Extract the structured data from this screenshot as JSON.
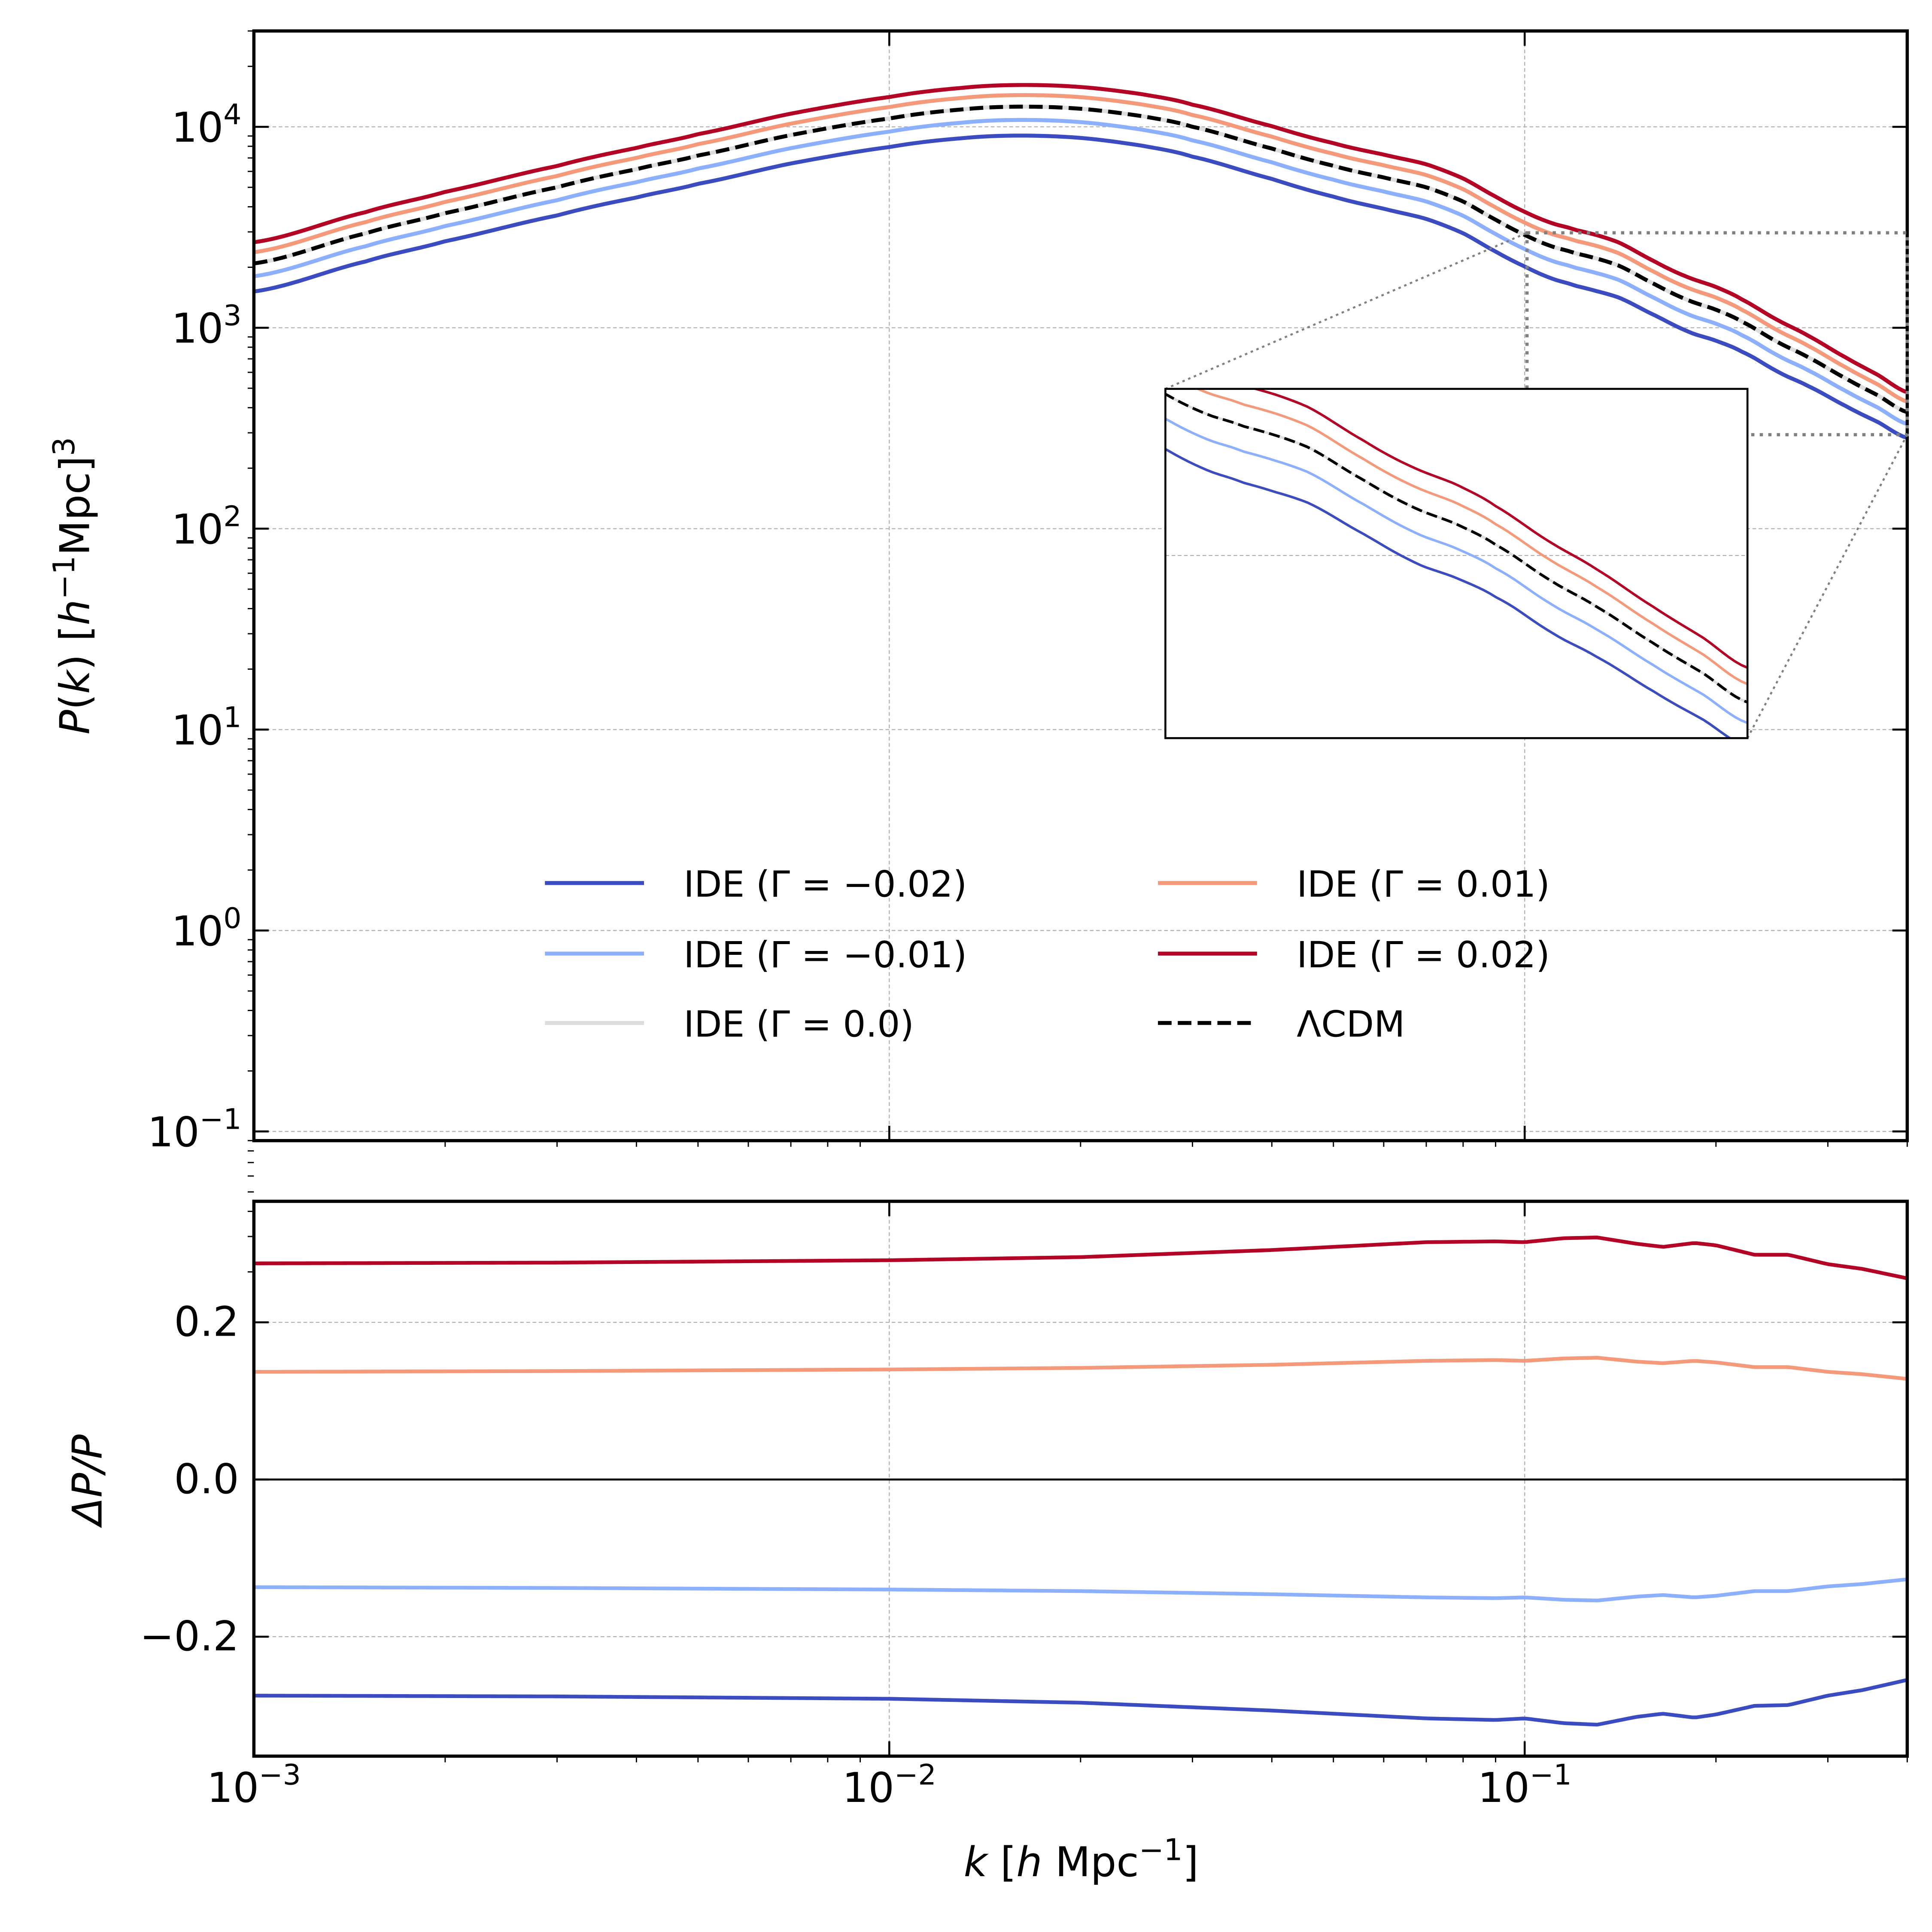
{
  "chart_data": {
    "type": "line",
    "panels": [
      {
        "id": "power-spectrum",
        "ylabel": "P(k) [h^-1 Mpc]^3",
        "xscale": "log",
        "yscale": "log",
        "xlim": [
          0.001,
          0.4
        ],
        "ylim": [
          0.09,
          30000
        ],
        "grid": true,
        "yticks": [
          {
            "value": 10000,
            "base": "10",
            "exp": "4"
          },
          {
            "value": 1000,
            "base": "10",
            "exp": "3"
          },
          {
            "value": 100,
            "base": "10",
            "exp": "2"
          },
          {
            "value": 10,
            "base": "10",
            "exp": "1"
          },
          {
            "value": 1,
            "base": "10",
            "exp": "0"
          },
          {
            "value": 0.1,
            "base": "10",
            "exp": "−1"
          }
        ],
        "legend_position": "lower-center",
        "inset": {
          "xlim": [
            0.1,
            0.4
          ],
          "ylim": [
            300,
            3000
          ],
          "xscale": "log",
          "yscale": "log",
          "location": "center-right",
          "grid": true
        }
      },
      {
        "id": "relative-difference",
        "ylabel": "ΔP/P",
        "xlabel": "k [h Mpc^-1]",
        "xscale": "log",
        "yscale": "linear",
        "xlim": [
          0.001,
          0.4
        ],
        "ylim": [
          -0.352,
          0.354
        ],
        "grid": true,
        "yticks": [
          {
            "value": 0.2,
            "label": "0.2"
          },
          {
            "value": 0.0,
            "label": "0.0"
          },
          {
            "value": -0.2,
            "label": "−0.2"
          }
        ],
        "reference_line": 0.0
      }
    ],
    "xticks": [
      {
        "value": 0.001,
        "base": "10",
        "exp": "−3"
      },
      {
        "value": 0.01,
        "base": "10",
        "exp": "−2"
      },
      {
        "value": 0.1,
        "base": "10",
        "exp": "−1"
      }
    ],
    "lcdm": {
      "k": [
        0.001,
        0.0015,
        0.002,
        0.003,
        0.004,
        0.005,
        0.007,
        0.01,
        0.013,
        0.016,
        0.02,
        0.025,
        0.03,
        0.04,
        0.05,
        0.06,
        0.07,
        0.08,
        0.09,
        0.1,
        0.11,
        0.12,
        0.14,
        0.16,
        0.18,
        0.2,
        0.22,
        0.25,
        0.28,
        0.32,
        0.36,
        0.4
      ],
      "P": [
        2090,
        2950,
        3720,
        5000,
        6150,
        7200,
        9100,
        11000,
        12200,
        12600,
        12300,
        11300,
        10000,
        7800,
        6400,
        5600,
        5000,
        4250,
        3450,
        2900,
        2550,
        2350,
        2050,
        1650,
        1380,
        1230,
        1070,
        850,
        710,
        560,
        460,
        380
      ]
    },
    "ratio_k": [
      0.001,
      0.003,
      0.01,
      0.02,
      0.04,
      0.07,
      0.09,
      0.1,
      0.115,
      0.13,
      0.15,
      0.165,
      0.185,
      0.2,
      0.23,
      0.26,
      0.3,
      0.34,
      0.4
    ],
    "series": [
      {
        "name": "IDE (Γ = −0.02)",
        "gamma": -0.02,
        "color": "#3b4cc0",
        "style": "solid",
        "ratio": [
          -0.275,
          -0.276,
          -0.279,
          -0.284,
          -0.294,
          -0.304,
          -0.306,
          -0.304,
          -0.31,
          -0.312,
          -0.302,
          -0.298,
          -0.303,
          -0.299,
          -0.288,
          -0.287,
          -0.275,
          -0.268,
          -0.255
        ]
      },
      {
        "name": "IDE (Γ = −0.01)",
        "gamma": -0.01,
        "color": "#8db0fe",
        "style": "solid",
        "ratio": [
          -0.137,
          -0.138,
          -0.14,
          -0.142,
          -0.146,
          -0.15,
          -0.151,
          -0.15,
          -0.153,
          -0.154,
          -0.149,
          -0.147,
          -0.15,
          -0.148,
          -0.142,
          -0.142,
          -0.136,
          -0.133,
          -0.127
        ]
      },
      {
        "name": "IDE (Γ = 0.0)",
        "gamma": 0.0,
        "color": "#dddddd",
        "style": "solid",
        "ratio": [
          0,
          0,
          0,
          0,
          0,
          0,
          0,
          0,
          0,
          0,
          0,
          0,
          0,
          0,
          0,
          0,
          0,
          0,
          0
        ]
      },
      {
        "name": "IDE (Γ = 0.01)",
        "gamma": 0.01,
        "color": "#f49a7b",
        "style": "solid",
        "ratio": [
          0.137,
          0.138,
          0.14,
          0.142,
          0.146,
          0.151,
          0.152,
          0.151,
          0.154,
          0.155,
          0.15,
          0.148,
          0.151,
          0.149,
          0.143,
          0.143,
          0.137,
          0.134,
          0.128
        ]
      },
      {
        "name": "IDE (Γ = 0.02)",
        "gamma": 0.02,
        "color": "#b40426",
        "style": "solid",
        "ratio": [
          0.275,
          0.276,
          0.279,
          0.283,
          0.292,
          0.302,
          0.303,
          0.302,
          0.307,
          0.308,
          0.3,
          0.296,
          0.301,
          0.298,
          0.286,
          0.286,
          0.274,
          0.268,
          0.256
        ]
      },
      {
        "name": "ΛCDM",
        "gamma": null,
        "color": "#000000",
        "style": "dashed"
      }
    ],
    "legend": [
      {
        "label": "IDE (Γ = −0.02)",
        "color": "#3b4cc0",
        "style": "solid"
      },
      {
        "label": "IDE (Γ = −0.01)",
        "color": "#8db0fe",
        "style": "solid"
      },
      {
        "label": "IDE (Γ = 0.0)",
        "color": "#dddddd",
        "style": "solid"
      },
      {
        "label": "IDE (Γ = 0.01)",
        "color": "#f49a7b",
        "style": "solid"
      },
      {
        "label": "IDE (Γ = 0.02)",
        "color": "#b40426",
        "style": "solid"
      },
      {
        "label": "ΛCDM",
        "color": "#000000",
        "style": "dashed"
      }
    ]
  },
  "labels": {
    "top_ylabel_main": "P(k) [h",
    "top_ylabel_sup1": "−1",
    "top_ylabel_mid": "Mpc]",
    "top_ylabel_sup2": "3",
    "bottom_ylabel": "ΔP/P",
    "xlabel_main": "k [h Mpc",
    "xlabel_sup": "−1",
    "xlabel_end": "]"
  }
}
